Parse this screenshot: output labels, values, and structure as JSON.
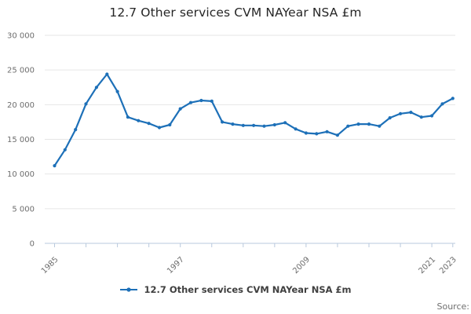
{
  "title": "12.7 Other services CVM NAYear NSA £m",
  "legend": {
    "items": [
      {
        "label": "12.7 Other services CVM NAYear NSA £m",
        "marker": "line-with-point",
        "color": "#1d70b8"
      }
    ]
  },
  "footer": {
    "source_label": "Source:"
  },
  "colors": {
    "line": "#1d70b8",
    "grid": "#e6e6e6",
    "axis": "#b9c9dd",
    "tick_text": "#6d6d6d",
    "title_text": "#262626",
    "legend_text": "#3f3f3f",
    "source_text": "#6f6f6f",
    "background": "#ffffff"
  },
  "chart_data": {
    "type": "line",
    "title": "12.7 Other services CVM NAYear NSA £m",
    "units": "£m",
    "x": [
      1985,
      1986,
      1987,
      1988,
      1989,
      1990,
      1991,
      1992,
      1993,
      1994,
      1995,
      1996,
      1997,
      1998,
      1999,
      2000,
      2001,
      2002,
      2003,
      2004,
      2005,
      2006,
      2007,
      2008,
      2009,
      2010,
      2011,
      2012,
      2013,
      2014,
      2015,
      2016,
      2017,
      2018,
      2019,
      2020,
      2021,
      2022,
      2023
    ],
    "series": [
      {
        "name": "12.7 Other services CVM NAYear NSA £m",
        "color": "#1d70b8",
        "values": [
          11200,
          13500,
          16400,
          20100,
          22500,
          24400,
          21900,
          18200,
          17700,
          17300,
          16700,
          17100,
          19400,
          20300,
          20600,
          20500,
          17500,
          17200,
          17000,
          17000,
          16900,
          17100,
          17400,
          16500,
          15900,
          15800,
          16100,
          15600,
          16900,
          17200,
          17200,
          16900,
          18100,
          18700,
          18900,
          18200,
          18400,
          20100,
          20900
        ]
      }
    ],
    "xlabel": "",
    "ylabel": "",
    "ylim": [
      0,
      30000
    ],
    "yticks": [
      0,
      5000,
      10000,
      15000,
      20000,
      25000,
      30000
    ],
    "ytick_labels": [
      "0",
      "5 000",
      "10 000",
      "15 000",
      "20 000",
      "25 000",
      "30 000"
    ],
    "xticks": [
      1985,
      1988,
      1991,
      1994,
      1997,
      2000,
      2003,
      2006,
      2009,
      2012,
      2015,
      2018,
      2021,
      2023
    ],
    "xtick_labels_shown": [
      "1985",
      "1997",
      "2009",
      "2021",
      "2023"
    ],
    "grid": "horizontal",
    "legend_position": "bottom"
  }
}
